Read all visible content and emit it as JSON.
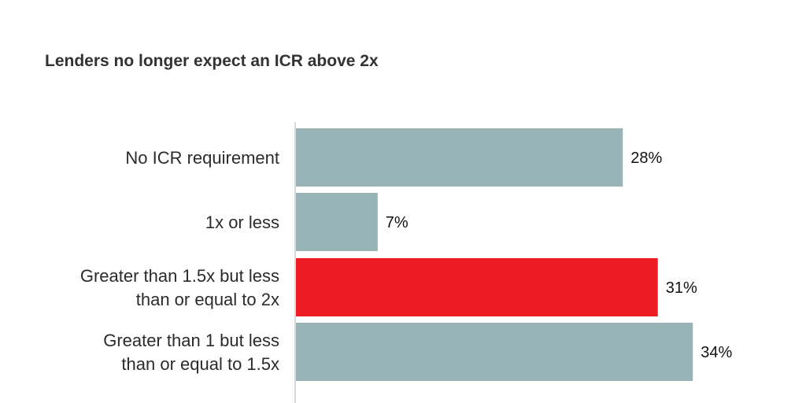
{
  "chart_data": {
    "type": "bar",
    "orientation": "horizontal",
    "title": "Lenders no longer expect an ICR above 2x",
    "categories": [
      [
        "No ICR requirement"
      ],
      [
        "1x or less"
      ],
      [
        "Greater than 1.5x but less",
        "than or equal to 2x"
      ],
      [
        "Greater than 1 but less",
        "than or equal to 1.5x"
      ]
    ],
    "values": [
      28,
      7,
      31,
      34
    ],
    "data_labels": [
      "28%",
      "7%",
      "31%",
      "34%"
    ],
    "highlight_index": 2,
    "xlim": [
      0,
      40
    ],
    "grid": false,
    "colors": {
      "default": "#97b3b6",
      "highlight": "#ed1c24",
      "axis": "#d9d9d9"
    }
  }
}
